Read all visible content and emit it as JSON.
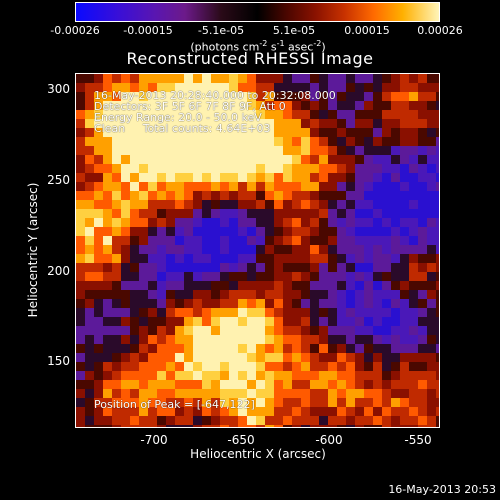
{
  "colorbar": {
    "ticks": [
      "-0.00026",
      "-0.00015",
      "-5.1e-05",
      "5.1e-05",
      "0.00015",
      "0.00026"
    ],
    "units_main": "(photons cm",
    "units_exp1": "-2",
    "units_mid1": " s",
    "units_exp2": "-1",
    "units_mid2": " asec",
    "units_exp3": "-2",
    "units_end": ")"
  },
  "title": "Reconstructed RHESSI Image",
  "info": {
    "time_range": "16-May-2013 20:28:40.000 to 20:32:08.000",
    "detectors": "Detectors: 3F 5F 6F 7F 8F 9F, Att 0",
    "energy": "Energy Range: 20.0 - 50.0 keV",
    "clean": "Clean     Total counts: 4.64E+03",
    "peak": "Position of Peak = [-647,122]"
  },
  "axes": {
    "xlabel": "Heliocentric X (arcsec)",
    "ylabel": "Heliocentric Y (arcsec)",
    "xticks": [
      "-700",
      "-650",
      "-600",
      "-550"
    ],
    "yticks": [
      "300",
      "250",
      "200",
      "150"
    ]
  },
  "timestamp": "16-May-2013 20:53"
}
